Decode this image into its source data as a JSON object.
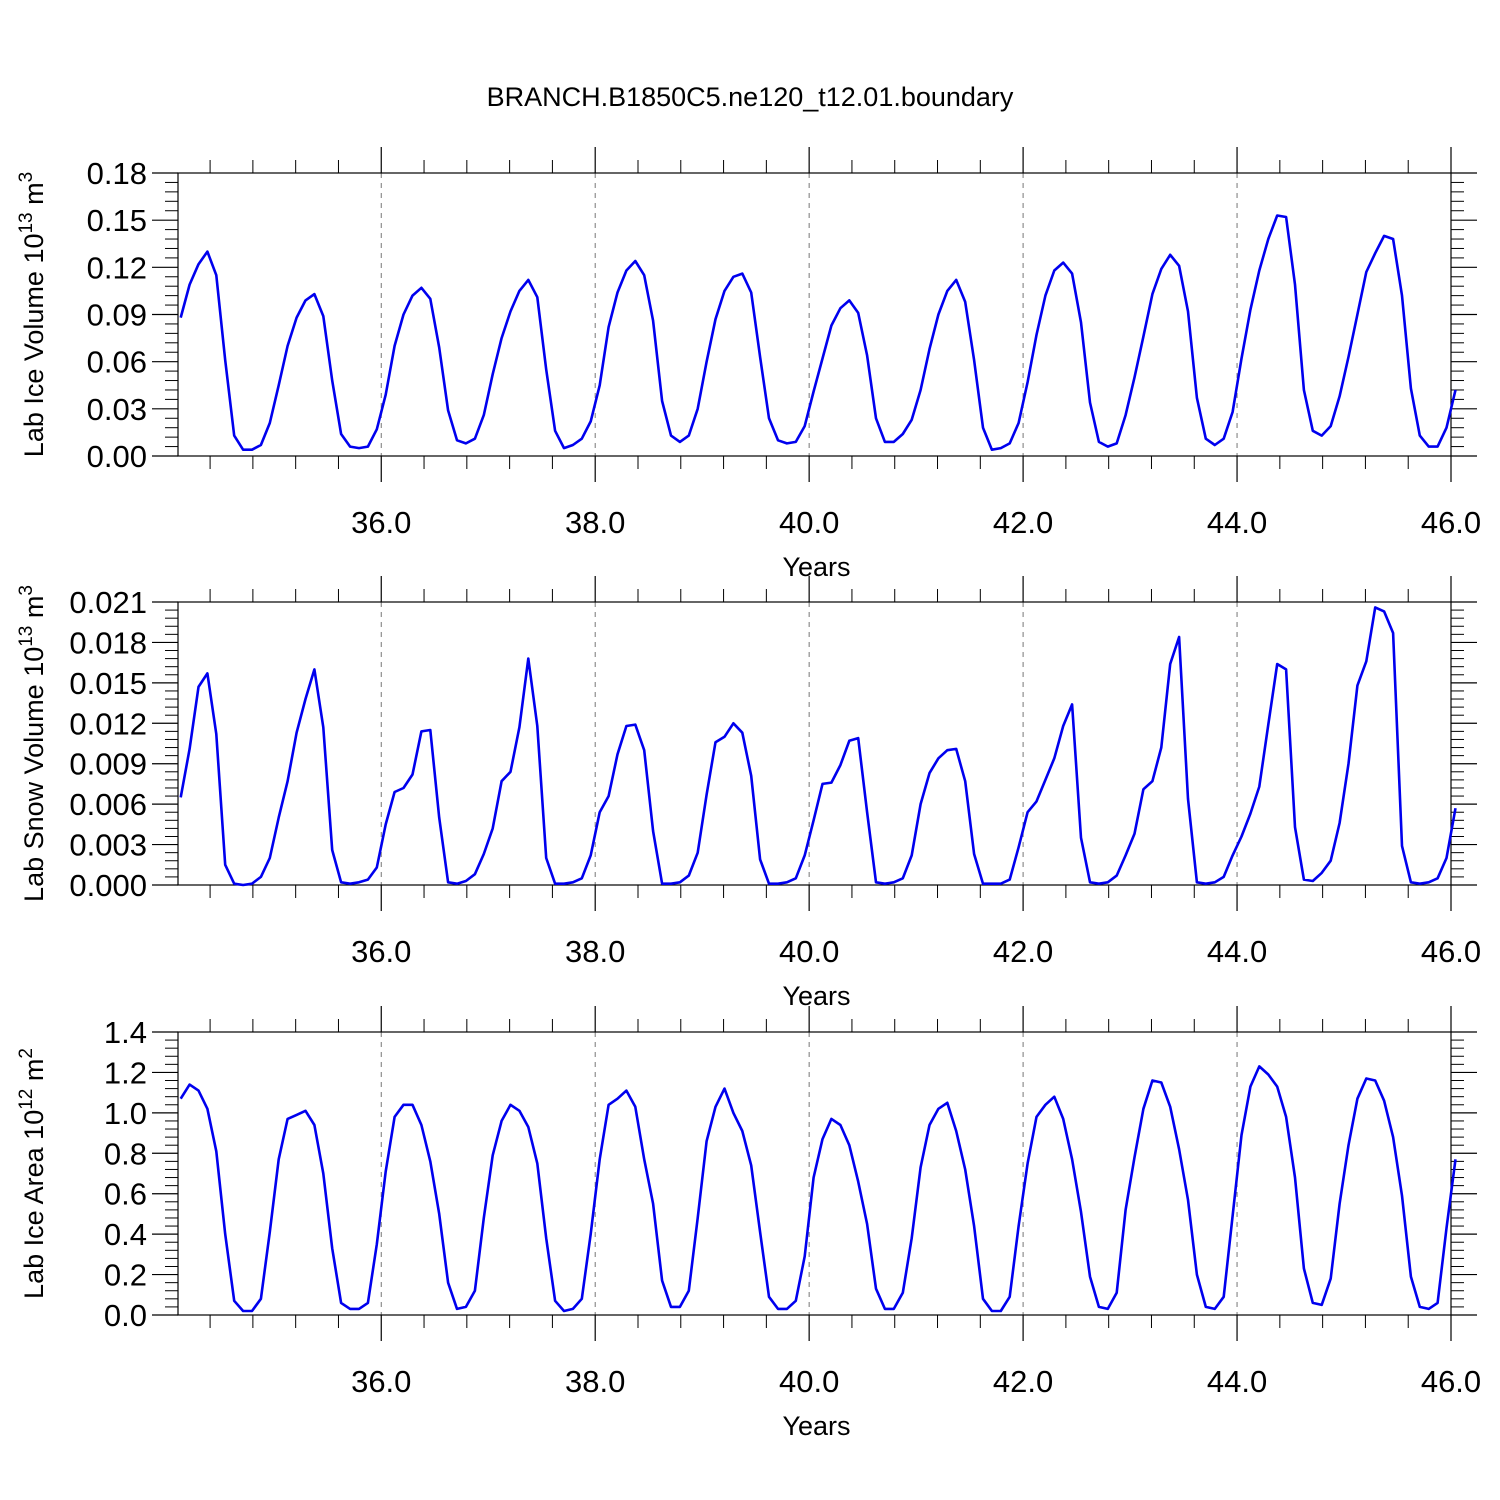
{
  "title": "BRANCH.B1850C5.ne120_t12.01.boundary",
  "colors": {
    "line": "#0000ee",
    "axis": "#000000",
    "grid": "#777777"
  },
  "chart_data": [
    {
      "type": "line",
      "xlabel": "Years",
      "ylabel_main": "Lab Ice Volume 10",
      "ylabel_sup": "13",
      "ylabel_unit": " m",
      "ylabel_unit_sup": "3",
      "xlim": [
        34.1,
        46.0
      ],
      "ylim": [
        0.0,
        0.18
      ],
      "x_ticks": [
        36.0,
        38.0,
        40.0,
        42.0,
        44.0,
        46.0
      ],
      "x_tick_labels": [
        "36.0",
        "38.0",
        "40.0",
        "42.0",
        "44.0",
        "46.0"
      ],
      "y_ticks": [
        0.0,
        0.03,
        0.06,
        0.09,
        0.12,
        0.15,
        0.18
      ],
      "y_tick_labels": [
        "0.00",
        "0.03",
        "0.06",
        "0.09",
        "0.12",
        "0.15",
        "0.18"
      ],
      "grid_x": true,
      "start_year": 34.125,
      "step": 0.0833333,
      "values": [
        0.088,
        0.109,
        0.122,
        0.13,
        0.115,
        0.061,
        0.013,
        0.004,
        0.004,
        0.007,
        0.021,
        0.045,
        0.07,
        0.088,
        0.099,
        0.103,
        0.089,
        0.048,
        0.014,
        0.006,
        0.005,
        0.006,
        0.017,
        0.039,
        0.07,
        0.09,
        0.102,
        0.107,
        0.1,
        0.069,
        0.029,
        0.01,
        0.008,
        0.011,
        0.026,
        0.052,
        0.075,
        0.092,
        0.105,
        0.112,
        0.101,
        0.055,
        0.016,
        0.005,
        0.007,
        0.011,
        0.022,
        0.045,
        0.082,
        0.104,
        0.118,
        0.124,
        0.115,
        0.086,
        0.035,
        0.013,
        0.009,
        0.013,
        0.03,
        0.06,
        0.087,
        0.105,
        0.114,
        0.116,
        0.104,
        0.063,
        0.024,
        0.01,
        0.008,
        0.009,
        0.019,
        0.041,
        0.062,
        0.083,
        0.094,
        0.099,
        0.091,
        0.064,
        0.024,
        0.009,
        0.009,
        0.014,
        0.023,
        0.042,
        0.068,
        0.09,
        0.105,
        0.112,
        0.098,
        0.061,
        0.018,
        0.004,
        0.005,
        0.008,
        0.021,
        0.047,
        0.077,
        0.102,
        0.118,
        0.123,
        0.116,
        0.085,
        0.034,
        0.009,
        0.006,
        0.008,
        0.026,
        0.05,
        0.076,
        0.103,
        0.119,
        0.128,
        0.121,
        0.092,
        0.037,
        0.011,
        0.007,
        0.011,
        0.028,
        0.062,
        0.093,
        0.118,
        0.138,
        0.153,
        0.152,
        0.109,
        0.042,
        0.016,
        0.013,
        0.019,
        0.038,
        0.063,
        0.09,
        0.117,
        0.129,
        0.14,
        0.138,
        0.102,
        0.043,
        0.013,
        0.006,
        0.006,
        0.018,
        0.042
      ]
    },
    {
      "type": "line",
      "xlabel": "Years",
      "ylabel_main": "Lab Snow Volume 10",
      "ylabel_sup": "13",
      "ylabel_unit": " m",
      "ylabel_unit_sup": "3",
      "xlim": [
        34.1,
        46.0
      ],
      "ylim": [
        0.0,
        0.021
      ],
      "x_ticks": [
        36.0,
        38.0,
        40.0,
        42.0,
        44.0,
        46.0
      ],
      "x_tick_labels": [
        "36.0",
        "38.0",
        "40.0",
        "42.0",
        "44.0",
        "46.0"
      ],
      "y_ticks": [
        0.0,
        0.003,
        0.006,
        0.009,
        0.012,
        0.015,
        0.018,
        0.021
      ],
      "y_tick_labels": [
        "0.000",
        "0.003",
        "0.006",
        "0.009",
        "0.012",
        "0.015",
        "0.018",
        "0.021"
      ],
      "grid_x": true,
      "start_year": 34.125,
      "step": 0.0833333,
      "values": [
        0.0065,
        0.0101,
        0.0147,
        0.0157,
        0.0112,
        0.0015,
        0.0001,
        0.0,
        0.0001,
        0.0006,
        0.002,
        0.005,
        0.0077,
        0.0113,
        0.0138,
        0.016,
        0.0117,
        0.0026,
        0.0002,
        0.0001,
        0.0002,
        0.0004,
        0.0013,
        0.0045,
        0.0069,
        0.0072,
        0.0082,
        0.0114,
        0.0115,
        0.005,
        0.0002,
        0.0001,
        0.0003,
        0.0008,
        0.0023,
        0.0042,
        0.0077,
        0.0084,
        0.0117,
        0.0168,
        0.0118,
        0.002,
        0.0001,
        0.0001,
        0.0002,
        0.0005,
        0.0022,
        0.0054,
        0.0066,
        0.0097,
        0.0118,
        0.0119,
        0.01,
        0.004,
        0.0001,
        0.0001,
        0.0002,
        0.0007,
        0.0024,
        0.0067,
        0.0106,
        0.011,
        0.012,
        0.0113,
        0.0081,
        0.0019,
        0.0001,
        0.0001,
        0.0002,
        0.0005,
        0.0022,
        0.0048,
        0.0075,
        0.0076,
        0.0089,
        0.0107,
        0.0109,
        0.0054,
        0.0002,
        0.0001,
        0.0002,
        0.0005,
        0.0022,
        0.006,
        0.0083,
        0.0094,
        0.01,
        0.0101,
        0.0077,
        0.0023,
        0.0001,
        0.0001,
        0.0001,
        0.0004,
        0.0028,
        0.0054,
        0.0062,
        0.0078,
        0.0094,
        0.0118,
        0.0134,
        0.0035,
        0.0002,
        0.0001,
        0.0002,
        0.0007,
        0.0022,
        0.0038,
        0.0071,
        0.0077,
        0.0102,
        0.0164,
        0.0184,
        0.0064,
        0.0002,
        0.0001,
        0.0002,
        0.0006,
        0.0022,
        0.0036,
        0.0053,
        0.0073,
        0.0119,
        0.0164,
        0.016,
        0.0043,
        0.0004,
        0.0003,
        0.0009,
        0.0018,
        0.0046,
        0.009,
        0.0148,
        0.0166,
        0.0206,
        0.0203,
        0.0187,
        0.0029,
        0.0002,
        0.0001,
        0.0002,
        0.0005,
        0.002,
        0.0057
      ]
    },
    {
      "type": "line",
      "xlabel": "Years",
      "ylabel_main": "Lab Ice Area 10",
      "ylabel_sup": "12",
      "ylabel_unit": " m",
      "ylabel_unit_sup": "2",
      "xlim": [
        34.1,
        46.0
      ],
      "ylim": [
        0.0,
        1.4
      ],
      "x_ticks": [
        36.0,
        38.0,
        40.0,
        42.0,
        44.0,
        46.0
      ],
      "x_tick_labels": [
        "36.0",
        "38.0",
        "40.0",
        "42.0",
        "44.0",
        "46.0"
      ],
      "y_ticks": [
        0.0,
        0.2,
        0.4,
        0.6,
        0.8,
        1.0,
        1.2,
        1.4
      ],
      "y_tick_labels": [
        "0.0",
        "0.2",
        "0.4",
        "0.6",
        "0.8",
        "1.0",
        "1.2",
        "1.4"
      ],
      "grid_x": true,
      "start_year": 34.125,
      "step": 0.0833333,
      "values": [
        1.07,
        1.14,
        1.11,
        1.02,
        0.81,
        0.4,
        0.07,
        0.02,
        0.02,
        0.08,
        0.41,
        0.77,
        0.97,
        0.99,
        1.01,
        0.94,
        0.7,
        0.33,
        0.06,
        0.03,
        0.03,
        0.06,
        0.35,
        0.71,
        0.98,
        1.04,
        1.04,
        0.94,
        0.76,
        0.5,
        0.16,
        0.03,
        0.04,
        0.12,
        0.48,
        0.79,
        0.96,
        1.04,
        1.01,
        0.93,
        0.75,
        0.38,
        0.07,
        0.02,
        0.03,
        0.08,
        0.4,
        0.77,
        1.04,
        1.07,
        1.11,
        1.03,
        0.77,
        0.55,
        0.17,
        0.04,
        0.04,
        0.12,
        0.48,
        0.86,
        1.03,
        1.12,
        1.0,
        0.91,
        0.74,
        0.41,
        0.09,
        0.03,
        0.03,
        0.07,
        0.29,
        0.68,
        0.87,
        0.97,
        0.94,
        0.84,
        0.66,
        0.45,
        0.13,
        0.03,
        0.03,
        0.11,
        0.38,
        0.73,
        0.94,
        1.02,
        1.05,
        0.91,
        0.72,
        0.44,
        0.08,
        0.02,
        0.02,
        0.09,
        0.44,
        0.75,
        0.98,
        1.04,
        1.08,
        0.97,
        0.77,
        0.51,
        0.19,
        0.04,
        0.03,
        0.11,
        0.52,
        0.78,
        1.02,
        1.16,
        1.15,
        1.03,
        0.82,
        0.57,
        0.2,
        0.04,
        0.03,
        0.09,
        0.49,
        0.89,
        1.13,
        1.23,
        1.19,
        1.13,
        0.98,
        0.68,
        0.23,
        0.06,
        0.05,
        0.18,
        0.55,
        0.84,
        1.07,
        1.17,
        1.16,
        1.06,
        0.88,
        0.59,
        0.19,
        0.04,
        0.03,
        0.06,
        0.43,
        0.77
      ]
    }
  ]
}
